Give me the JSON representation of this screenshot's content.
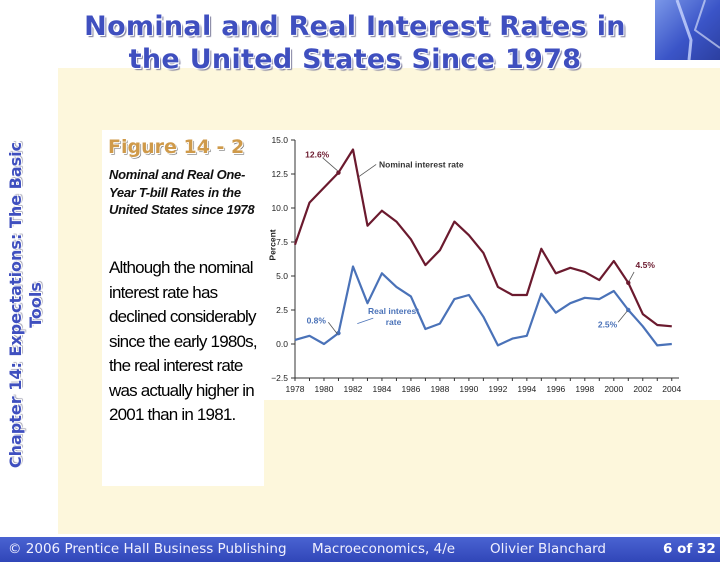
{
  "slide": {
    "title_line1": "Nominal and Real Interest Rates in",
    "title_line2": "the United States Since 1978",
    "side_label_line1": "Chapter 14: Expectations: The Basic",
    "side_label_line2": "Tools"
  },
  "figure": {
    "label": "Figure 14 - 2",
    "caption": "Nominal and Real One-Year T-bill Rates in the United States since 1978",
    "body": "Although the nominal interest rate has declined considerably since the early 1980s, the real interest rate was actually higher in 2001 than in 1981."
  },
  "footer": {
    "copyright": "© 2006 Prentice Hall Business Publishing",
    "book": "Macroeconomics, 4/e",
    "author": "Olivier Blanchard",
    "page": "6 of 32"
  },
  "chart_data": {
    "type": "line",
    "title": "",
    "xlabel": "",
    "ylabel": "Percent",
    "xlim": [
      1978,
      2004.5
    ],
    "ylim": [
      -2.5,
      15.0
    ],
    "grid": false,
    "x_ticks": [
      "1978",
      "1980",
      "1982",
      "1984",
      "1986",
      "1988",
      "1990",
      "1992",
      "1994",
      "1996",
      "1998",
      "2000",
      "2002",
      "2004"
    ],
    "y_ticks": [
      "15.0",
      "12.5",
      "10.0",
      "7.5",
      "5.0",
      "2.5",
      "0.0",
      "−2.5"
    ],
    "x": [
      1978,
      1979,
      1980,
      1981,
      1982,
      1983,
      1984,
      1985,
      1986,
      1987,
      1988,
      1989,
      1990,
      1991,
      1992,
      1993,
      1994,
      1995,
      1996,
      1997,
      1998,
      1999,
      2000,
      2001,
      2002,
      2003,
      2004
    ],
    "series": [
      {
        "name": "Nominal interest rate",
        "color": "#6b1a2e",
        "values": [
          7.3,
          10.4,
          11.5,
          12.6,
          14.3,
          8.7,
          9.8,
          9.0,
          7.7,
          5.8,
          6.9,
          9.0,
          8.0,
          6.7,
          4.2,
          3.6,
          3.6,
          7.0,
          5.2,
          5.6,
          5.3,
          4.7,
          6.1,
          4.5,
          2.2,
          1.4,
          1.3
        ]
      },
      {
        "name": "Real interest rate",
        "color": "#4a72b8",
        "values": [
          0.3,
          0.6,
          0.0,
          0.8,
          5.7,
          3.0,
          5.2,
          4.2,
          3.5,
          1.1,
          1.5,
          3.3,
          3.6,
          2.0,
          -0.1,
          0.4,
          0.6,
          3.7,
          2.3,
          3.0,
          3.4,
          3.3,
          3.9,
          2.5,
          1.3,
          -0.1,
          0.0
        ]
      }
    ],
    "annotations": [
      {
        "text": "12.6%",
        "x": 1981,
        "y": 12.6
      },
      {
        "text": "4.5%",
        "x": 2001,
        "y": 4.5
      },
      {
        "text": "0.8%",
        "x": 1981,
        "y": 0.8
      },
      {
        "text": "2.5%",
        "x": 2001,
        "y": 2.5
      }
    ]
  }
}
